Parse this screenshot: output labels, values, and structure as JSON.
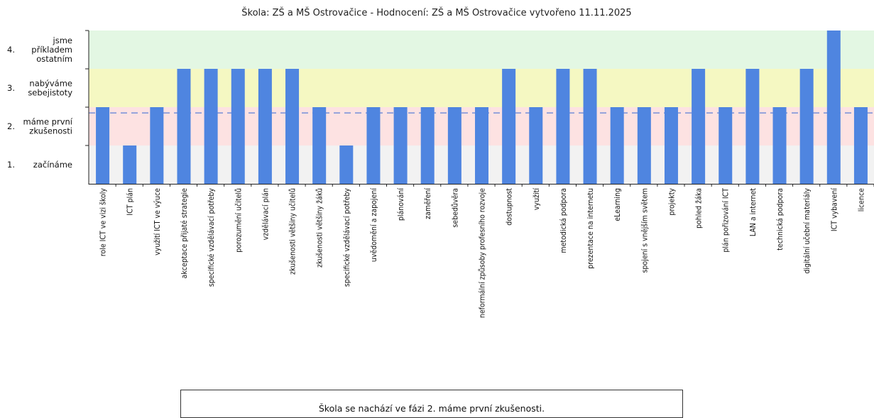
{
  "chart_data": {
    "type": "bar",
    "title": "Škola: ZŠ a MŠ Ostrovačice - Hodnocení: ZŠ a MŠ Ostrovačice vytvořeno 11.11.2025",
    "ylim": [
      0.5,
      4.5
    ],
    "bands": [
      {
        "from": 0.5,
        "to": 1.5,
        "color": "#f2f2f2"
      },
      {
        "from": 1.5,
        "to": 2.5,
        "color": "#fde2e2"
      },
      {
        "from": 2.5,
        "to": 3.5,
        "color": "#f5f8c2"
      },
      {
        "from": 3.5,
        "to": 4.5,
        "color": "#e3f7e3"
      }
    ],
    "levels": [
      {
        "num": "1.",
        "lines": [
          "začínáme"
        ],
        "value": 1
      },
      {
        "num": "2.",
        "lines": [
          "máme první",
          "zkušenosti"
        ],
        "value": 2
      },
      {
        "num": "3.",
        "lines": [
          "nabýváme",
          "sebejistoty"
        ],
        "value": 3
      },
      {
        "num": "4.",
        "lines": [
          "jsme",
          "příkladem",
          "ostatním"
        ],
        "value": 4
      }
    ],
    "reference_line": 2.35,
    "bar_color": "#4f85e0",
    "categories": [
      "role ICT ve vizi školy",
      "ICT plán",
      "využití ICT ve výuce",
      "akceptace přijaté strategie",
      "specifické vzdělávací potřeby",
      "porozumění učitelů",
      "vzdělávací plán",
      "zkušenosti většiny učitelů",
      "zkušenosti většiny žáků",
      "specifické vzdělávací potřeby",
      "uvědomění a zapojení",
      "plánování",
      "zaměření",
      "sebedůvěra",
      "neformální způsoby profesního rozvoje",
      "dostupnost",
      "využití",
      "metodická podpora",
      "prezentace na internetu",
      "eLearning",
      "spojení s vnějším světem",
      "projekty",
      "pohled žáka",
      "plán pořizování ICT",
      "LAN a internet",
      "technická podpora",
      "digitální učební materiály",
      "ICT vybavení",
      "licence"
    ],
    "values": [
      2,
      1,
      2,
      3,
      3,
      3,
      3,
      3,
      2,
      1,
      2,
      2,
      2,
      2,
      2,
      3,
      2,
      3,
      3,
      2,
      2,
      2,
      3,
      2,
      3,
      2,
      3,
      4,
      2
    ]
  },
  "summary_text": "Škola se nachází ve fázi 2. máme první zkušenosti."
}
